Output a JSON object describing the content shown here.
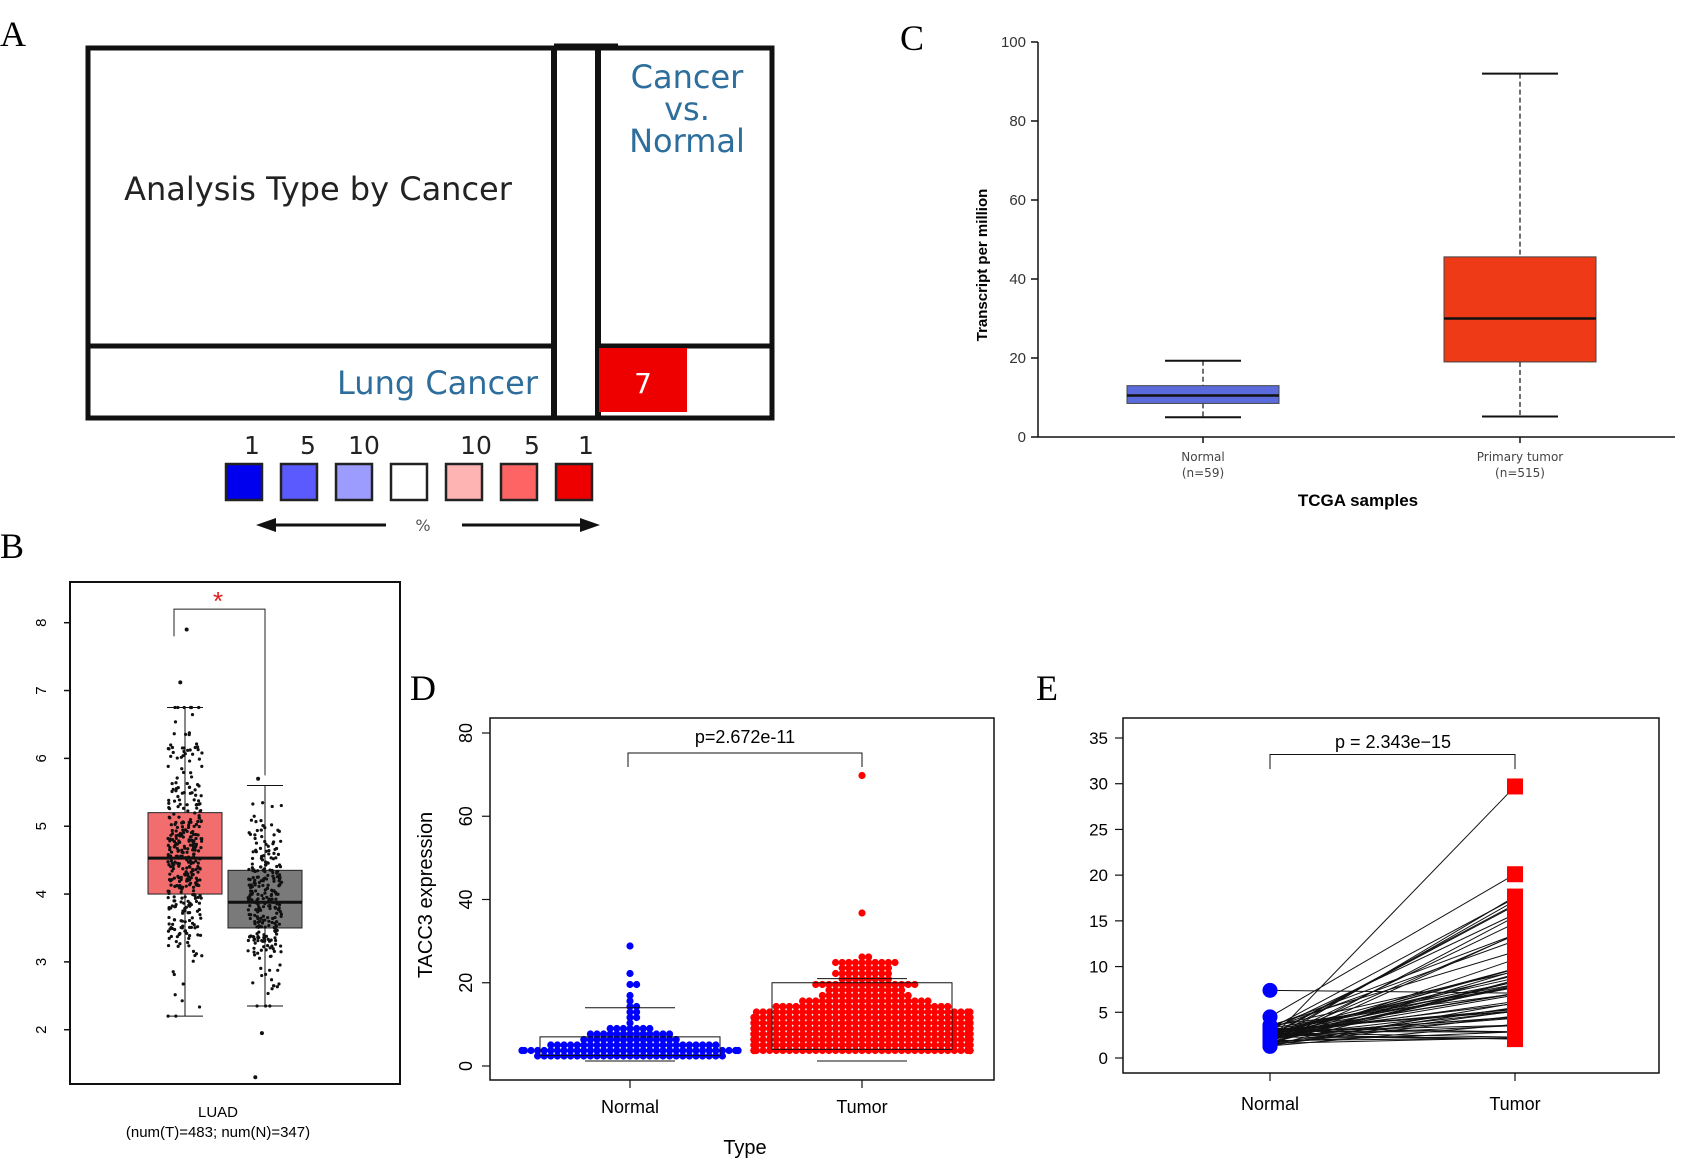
{
  "panels": {
    "A": {
      "letter": "A",
      "header_left": "Analysis Type by Cancer",
      "header_right": [
        "Cancer",
        "vs.",
        "Normal"
      ],
      "row_label": "Lung Cancer",
      "cell_value": "7",
      "legend_labels": [
        "1",
        "5",
        "10",
        "10",
        "5",
        "1"
      ],
      "legend_arrow_label": "%",
      "legend_colors": [
        "#0000ee",
        "#5a5aff",
        "#9c9cff",
        "#ffffff",
        "#ffb4b4",
        "#ff6464",
        "#ee0000"
      ]
    },
    "B": {
      "letter": "B"
    },
    "C": {
      "letter": "C"
    },
    "D": {
      "letter": "D"
    },
    "E": {
      "letter": "E"
    }
  },
  "chart_data": [
    {
      "panel": "B",
      "type": "box",
      "categories": [
        "LUAD"
      ],
      "xlabel": "LUAD",
      "xlabel2": "(num(T)=483; num(N)=347)",
      "ylabel": "",
      "ylim": [
        1.2,
        8.6
      ],
      "yticks": [
        2,
        3,
        4,
        5,
        6,
        7,
        8
      ],
      "significance": "*",
      "series": [
        {
          "group": "Tumor",
          "color": "#f26d6d",
          "whisker_low": 2.2,
          "q1": 4.0,
          "median": 4.53,
          "q3": 5.2,
          "whisker_high": 6.75,
          "outliers": [
            7.12,
            7.9
          ],
          "n": 483
        },
        {
          "group": "Normal",
          "color": "#7a7a7a",
          "whisker_low": 2.35,
          "q1": 3.5,
          "median": 3.88,
          "q3": 4.35,
          "whisker_high": 5.6,
          "outliers": [
            1.3,
            1.95,
            5.7
          ],
          "n": 347
        }
      ]
    },
    {
      "panel": "C",
      "type": "box",
      "categories": [
        "Normal",
        "Primary tumor"
      ],
      "category_counts": [
        "(n=59)",
        "(n=515)"
      ],
      "xlabel": "TCGA samples",
      "ylabel": "Transcript per million",
      "ylim": [
        0,
        100
      ],
      "yticks": [
        0,
        20,
        40,
        60,
        80,
        100
      ],
      "series": [
        {
          "group": "Normal",
          "color": "#5b6bdc",
          "whisker_low": 5,
          "q1": 8.5,
          "median": 10.5,
          "q3": 13,
          "whisker_high": 19.3
        },
        {
          "group": "Primary tumor",
          "color": "#ee3a17",
          "whisker_low": 5.2,
          "q1": 19,
          "median": 30,
          "q3": 45.6,
          "whisker_high": 92
        }
      ]
    },
    {
      "panel": "D",
      "type": "scatter",
      "categories": [
        "Normal",
        "Tumor"
      ],
      "xlabel": "Type",
      "ylabel": "TACC3 expression",
      "ylim": [
        0,
        80
      ],
      "yticks": [
        0,
        20,
        40,
        60,
        80
      ],
      "pvalue": "p=2.672e-11",
      "series": [
        {
          "group": "Normal",
          "color": "#0000ff",
          "median": 3,
          "q1": 2.5,
          "q3": 7,
          "whisker_high": 14,
          "max": 29,
          "n_points": 140
        },
        {
          "group": "Tumor",
          "color": "#ff0000",
          "median": 8,
          "q1": 4,
          "q3": 20,
          "whisker_high": 21,
          "max": 70,
          "n_points": 600
        }
      ]
    },
    {
      "panel": "E",
      "type": "line",
      "categories": [
        "Normal",
        "Tumor"
      ],
      "xlabel": "",
      "ylabel": "",
      "ylim": [
        0,
        35
      ],
      "yticks": [
        0,
        5,
        10,
        15,
        20,
        25,
        30,
        35
      ],
      "pvalue": "p = 2.343e−15",
      "series": [
        {
          "group": "Normal",
          "color": "#0000ff",
          "range": [
            1,
            7.4
          ]
        },
        {
          "group": "Tumor",
          "color": "#ff0000",
          "range": [
            1.5,
            29.7
          ]
        }
      ]
    }
  ]
}
